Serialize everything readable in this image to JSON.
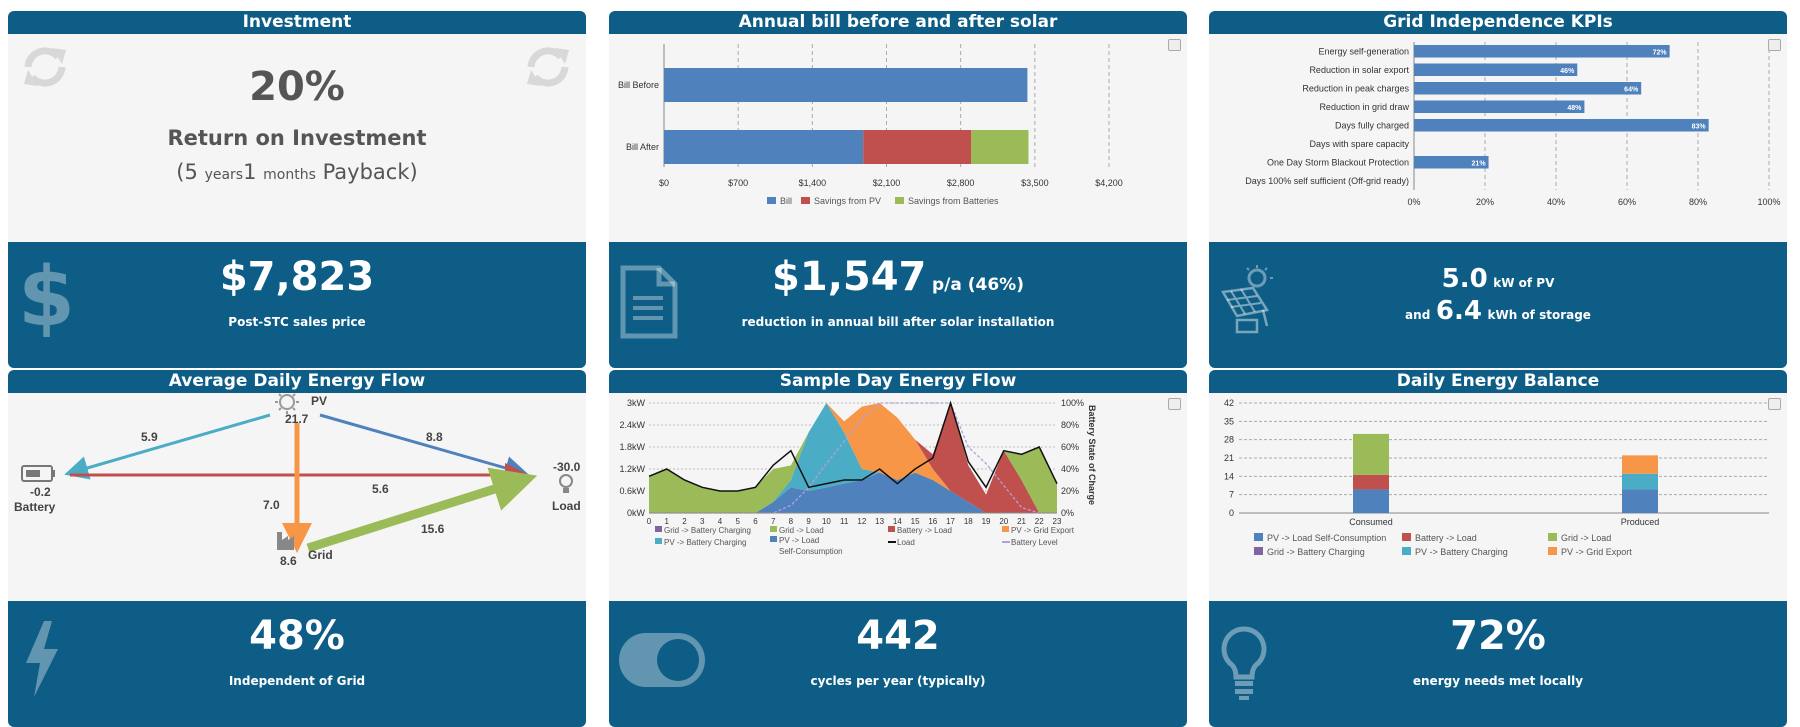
{
  "investment": {
    "title": "Investment",
    "roi": "20%",
    "roi_label": "Return on Investment",
    "payback_open": "(",
    "payback_years": "5",
    "years_label": "years",
    "payback_months": "1",
    "months_label": "months",
    "payback_close": "Payback)",
    "price": "$7,823",
    "price_label": "Post-STC sales price"
  },
  "bill": {
    "title": "Annual bill before and after solar",
    "saving": "$1,547",
    "saving_unit": "p/a (46%)",
    "saving_label": "reduction in annual bill after solar installation"
  },
  "kpi": {
    "title": "Grid Independence KPIs",
    "pv": "5.0",
    "pv_unit": "kW of PV",
    "storage_prefix": "and",
    "storage": "6.4",
    "storage_unit": "kWh of storage"
  },
  "flow": {
    "title": "Average Daily Energy Flow",
    "pv_label": "PV",
    "pv_value": "21.7",
    "battery_label": "Battery",
    "battery_value": "-0.2",
    "load_label": "Load",
    "load_value": "-30.0",
    "grid_label": "Grid",
    "grid_value": "8.6",
    "pv_battery": "5.9",
    "pv_load": "8.8",
    "battery_load": "5.6",
    "pv_grid": "7.0",
    "grid_load": "15.6",
    "independent": "48%",
    "independent_label": "Independent of Grid"
  },
  "sample": {
    "title": "Sample Day Energy Flow",
    "cycles": "442",
    "cycles_label": "cycles per year (typically)"
  },
  "balance": {
    "title": "Daily Energy Balance",
    "local": "72%",
    "local_label": "energy needs met locally"
  },
  "colors": {
    "header": "#0d5d86",
    "blue": "#4f81bd",
    "red": "#c0504d",
    "green": "#9bbb59",
    "purple": "#8064a2",
    "teal": "#4bacc6",
    "orange": "#f79646"
  },
  "chart_data": [
    {
      "type": "bar",
      "orientation": "horizontal",
      "stacked": true,
      "categories": [
        "Bill Before",
        "Bill After"
      ],
      "series": [
        {
          "name": "Bill",
          "values": [
            3430,
            1880
          ]
        },
        {
          "name": "Savings from PV",
          "values": [
            0,
            1020
          ]
        },
        {
          "name": "Savings from Batteries",
          "values": [
            0,
            540
          ]
        }
      ],
      "xticks": [
        "$0",
        "$700",
        "$1,400",
        "$2,100",
        "$2,800",
        "$3,500",
        "$4,200"
      ],
      "xlim": [
        0,
        4200
      ],
      "legend": "bottom"
    },
    {
      "type": "bar",
      "orientation": "horizontal",
      "categories": [
        "Energy self-generation",
        "Reduction in solar export",
        "Reduction in peak charges",
        "Reduction in grid draw",
        "Days fully charged",
        "Days with spare capacity",
        "One Day Storm Blackout Protection",
        "Days 100% self sufficient (Off-grid ready)"
      ],
      "values": [
        72,
        46,
        64,
        48,
        83,
        0,
        21,
        0
      ],
      "labels": [
        "72%",
        "46%",
        "64%",
        "48%",
        "83%",
        "",
        "21%",
        ""
      ],
      "xticks": [
        "0%",
        "20%",
        "40%",
        "60%",
        "80%",
        "100%"
      ],
      "xlim": [
        0,
        100
      ]
    },
    {
      "type": "area",
      "stacked": true,
      "x": [
        0,
        1,
        2,
        3,
        4,
        5,
        6,
        7,
        8,
        9,
        10,
        11,
        12,
        13,
        14,
        15,
        16,
        17,
        18,
        19,
        20,
        21,
        22,
        23
      ],
      "y_ticks": [
        "0kW",
        "0.6kW",
        "1.2kW",
        "1.8kW",
        "2.4kW",
        "3kW"
      ],
      "ylim": [
        0,
        3
      ],
      "y2_ticks": [
        "0%",
        "20%",
        "40%",
        "60%",
        "80%",
        "100%"
      ],
      "y2label": "Battery State of Charge",
      "series": [
        {
          "name": "PV -> Load Self-Consumption",
          "values": [
            0,
            0,
            0,
            0,
            0,
            0,
            0,
            0.3,
            0.7,
            0.6,
            0.7,
            0.8,
            0.9,
            1.1,
            0.9,
            1.1,
            0.9,
            0.6,
            0.3,
            0,
            0,
            0,
            0,
            0
          ]
        },
        {
          "name": "PV -> Battery Charging",
          "values": [
            0,
            0,
            0,
            0,
            0,
            0,
            0,
            0,
            0.2,
            1.6,
            2.3,
            1.4,
            0.3,
            0,
            0,
            0,
            0,
            0,
            0,
            0,
            0,
            0,
            0,
            0
          ]
        },
        {
          "name": "PV -> Grid Export",
          "values": [
            0,
            0,
            0,
            0,
            0,
            0,
            0,
            0,
            0,
            0,
            0,
            0.3,
            1.7,
            1.9,
            1.7,
            0.9,
            0.3,
            0,
            0,
            0,
            0,
            0,
            0,
            0
          ]
        },
        {
          "name": "Battery -> Load",
          "values": [
            0,
            0,
            0,
            0,
            0,
            0,
            0,
            0,
            0,
            0,
            0,
            0,
            0,
            0,
            0,
            0,
            0.4,
            2.4,
            1.0,
            0.5,
            1.7,
            0.9,
            0,
            0
          ]
        },
        {
          "name": "Grid -> Load",
          "values": [
            1.0,
            1.2,
            0.9,
            0.7,
            0.6,
            0.6,
            0.7,
            0.9,
            0.4,
            0,
            0,
            0,
            0,
            0,
            0,
            0,
            0,
            0,
            0,
            0,
            0,
            0.7,
            1.8,
            0.8
          ]
        },
        {
          "name": "Grid -> Battery Charging",
          "values": [
            0,
            0,
            0,
            0,
            0,
            0,
            0,
            0,
            0,
            0,
            0,
            0,
            0,
            0,
            0,
            0,
            0,
            0,
            0,
            0,
            0,
            0,
            0,
            0
          ]
        }
      ],
      "load": [
        1.0,
        1.2,
        0.9,
        0.7,
        0.6,
        0.6,
        0.7,
        1.3,
        1.7,
        0.7,
        0.8,
        0.9,
        0.9,
        1.2,
        0.8,
        1.2,
        1.5,
        3.0,
        1.4,
        0.7,
        1.7,
        1.6,
        1.8,
        0.8
      ],
      "battery_level": [
        0,
        0,
        0,
        0,
        0,
        0,
        0,
        0,
        7,
        23,
        45,
        65,
        85,
        100,
        100,
        100,
        100,
        100,
        60,
        45,
        25,
        5,
        0,
        0
      ],
      "legend": "bottom"
    },
    {
      "type": "bar",
      "stacked": true,
      "categories": [
        "Consumed",
        "Produced"
      ],
      "series": [
        {
          "name": "PV -> Load Self-Consumption",
          "values": [
            9,
            9
          ]
        },
        {
          "name": "Battery -> Load",
          "values": [
            5.6,
            0
          ]
        },
        {
          "name": "Grid -> Load",
          "values": [
            15.6,
            0
          ]
        },
        {
          "name": "Grid -> Battery Charging",
          "values": [
            0,
            0
          ]
        },
        {
          "name": "PV -> Battery Charging",
          "values": [
            0,
            6
          ]
        },
        {
          "name": "PV -> Grid Export",
          "values": [
            0,
            7
          ]
        }
      ],
      "yticks": [
        "0",
        "7",
        "14",
        "21",
        "28",
        "35",
        "42"
      ],
      "ylim": [
        0,
        42
      ],
      "legend": "bottom"
    }
  ]
}
